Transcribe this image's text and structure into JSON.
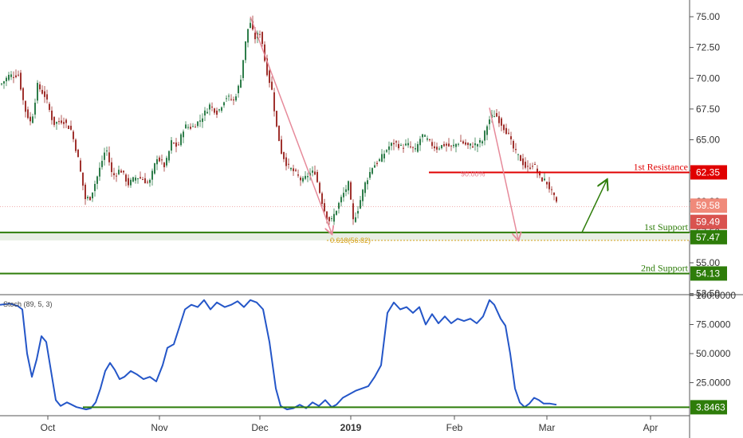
{
  "chart_data": [
    {
      "type": "candlestick",
      "y_ticks": [
        52.5,
        55,
        57.5,
        60,
        62.5,
        65,
        67.5,
        70,
        72.5,
        75
      ],
      "y_tick_labels": [
        "52.50",
        "55.00",
        "57.50",
        "60.00",
        "62.50",
        "65.00",
        "67.50",
        "70.00",
        "72.50",
        "75.00"
      ],
      "ylim": [
        52.2,
        76.5
      ],
      "x_months": [
        "Oct",
        "Nov",
        "Dec",
        "2019",
        "Feb",
        "Mar",
        "Apr"
      ],
      "close_path": [
        [
          0,
          69.5
        ],
        [
          10,
          70.2
        ],
        [
          22,
          70.3
        ],
        [
          30,
          67.5
        ],
        [
          38,
          66.3
        ],
        [
          46,
          69.4
        ],
        [
          56,
          68.5
        ],
        [
          66,
          66.3
        ],
        [
          78,
          66.6
        ],
        [
          88,
          65.8
        ],
        [
          96,
          63.8
        ],
        [
          106,
          60.2
        ],
        [
          112,
          60.3
        ],
        [
          122,
          62.2
        ],
        [
          132,
          64.4
        ],
        [
          140,
          62.0
        ],
        [
          150,
          62.6
        ],
        [
          160,
          61.4
        ],
        [
          170,
          62.0
        ],
        [
          178,
          61.8
        ],
        [
          186,
          61.4
        ],
        [
          196,
          63.6
        ],
        [
          206,
          62.8
        ],
        [
          214,
          64.8
        ],
        [
          222,
          64.4
        ],
        [
          230,
          66.1
        ],
        [
          240,
          66.0
        ],
        [
          250,
          66.6
        ],
        [
          262,
          67.8
        ],
        [
          272,
          67.2
        ],
        [
          282,
          68.5
        ],
        [
          292,
          68.2
        ],
        [
          300,
          69.6
        ],
        [
          306,
          72.5
        ],
        [
          312,
          74.8
        ],
        [
          318,
          73.2
        ],
        [
          326,
          73.8
        ],
        [
          332,
          71.0
        ],
        [
          340,
          69.0
        ],
        [
          346,
          66.0
        ],
        [
          352,
          64.0
        ],
        [
          360,
          62.8
        ],
        [
          368,
          62.4
        ],
        [
          378,
          61.6
        ],
        [
          386,
          62.2
        ],
        [
          394,
          62.4
        ],
        [
          402,
          60.2
        ],
        [
          408,
          58.8
        ],
        [
          414,
          58.3
        ],
        [
          420,
          59.2
        ],
        [
          428,
          60.4
        ],
        [
          436,
          61.4
        ],
        [
          442,
          58.4
        ],
        [
          448,
          59.4
        ],
        [
          456,
          61.3
        ],
        [
          466,
          62.8
        ],
        [
          476,
          63.4
        ],
        [
          486,
          64.4
        ],
        [
          494,
          64.8
        ],
        [
          502,
          64.4
        ],
        [
          510,
          64.6
        ],
        [
          520,
          64.1
        ],
        [
          528,
          65.4
        ],
        [
          536,
          64.9
        ],
        [
          546,
          64.3
        ],
        [
          556,
          64.6
        ],
        [
          566,
          64.4
        ],
        [
          576,
          64.9
        ],
        [
          586,
          64.5
        ],
        [
          596,
          64.6
        ],
        [
          604,
          64.9
        ],
        [
          612,
          66.6
        ],
        [
          620,
          67.1
        ],
        [
          628,
          66.3
        ],
        [
          636,
          65.5
        ],
        [
          644,
          64.1
        ],
        [
          652,
          63.4
        ],
        [
          660,
          62.6
        ],
        [
          668,
          63.1
        ],
        [
          676,
          61.9
        ],
        [
          684,
          61.6
        ],
        [
          692,
          60.6
        ],
        [
          698,
          59.6
        ]
      ],
      "levels": [
        {
          "name": "1st Resistance",
          "value": 62.35,
          "label": "62.35",
          "color": "#e00000"
        },
        {
          "name": "1st Support",
          "value": 57.47,
          "label": "57.47",
          "color": "#2e7d0a"
        },
        {
          "name": "2nd Support",
          "value": 54.13,
          "label": "54.13",
          "color": "#2e7d0a"
        }
      ],
      "price_tags": [
        {
          "value": 59.58,
          "label": "59.58",
          "color": "#f08a7a"
        },
        {
          "value": 59.49,
          "label": "59.49",
          "color": "#d9534f"
        }
      ],
      "fib_label": "0.618(56.82)",
      "fib_value": 56.82,
      "fib_color": "#d4a017",
      "ratio_label": "90.00%",
      "projection_arrows": [
        {
          "from_x": 314,
          "from_y": 75.0,
          "to_x": 416,
          "to_y": 57.4
        },
        {
          "from_x": 614,
          "from_y": 67.6,
          "to_x": 650,
          "to_y": 56.9
        }
      ],
      "bounce_arrow": {
        "from_x": 730,
        "to_x": 761,
        "from_y": 57.47,
        "to_y": 62.35,
        "color": "#2e7d0a"
      },
      "colors": {
        "up": "#2e7d4a",
        "down": "#a0322e",
        "fill_band": "#e8eee4"
      }
    },
    {
      "type": "line",
      "indicator_label": "Stoch (89, 5, 3)",
      "y_ticks": [
        25,
        50,
        75,
        100
      ],
      "y_tick_labels": [
        "25.0000",
        "50.0000",
        "75.0000",
        "100.0000"
      ],
      "ylim": [
        0,
        100
      ],
      "current": {
        "value": 3.8463,
        "label": "3.8463",
        "color": "#2e7d0a"
      },
      "line_color": "#2456c8",
      "points": [
        [
          0,
          92
        ],
        [
          12,
          93
        ],
        [
          22,
          91
        ],
        [
          28,
          88
        ],
        [
          34,
          50
        ],
        [
          40,
          30
        ],
        [
          46,
          45
        ],
        [
          52,
          65
        ],
        [
          58,
          60
        ],
        [
          64,
          35
        ],
        [
          70,
          10
        ],
        [
          76,
          5
        ],
        [
          84,
          8
        ],
        [
          90,
          6
        ],
        [
          96,
          4
        ],
        [
          102,
          3
        ],
        [
          108,
          2
        ],
        [
          114,
          3
        ],
        [
          120,
          8
        ],
        [
          126,
          20
        ],
        [
          132,
          35
        ],
        [
          138,
          42
        ],
        [
          144,
          36
        ],
        [
          150,
          28
        ],
        [
          156,
          30
        ],
        [
          164,
          35
        ],
        [
          172,
          32
        ],
        [
          180,
          28
        ],
        [
          188,
          30
        ],
        [
          196,
          26
        ],
        [
          204,
          40
        ],
        [
          210,
          55
        ],
        [
          218,
          58
        ],
        [
          226,
          75
        ],
        [
          232,
          88
        ],
        [
          240,
          92
        ],
        [
          248,
          90
        ],
        [
          256,
          96
        ],
        [
          264,
          88
        ],
        [
          272,
          94
        ],
        [
          282,
          90
        ],
        [
          290,
          92
        ],
        [
          298,
          95
        ],
        [
          306,
          90
        ],
        [
          314,
          96
        ],
        [
          322,
          94
        ],
        [
          330,
          88
        ],
        [
          338,
          60
        ],
        [
          346,
          20
        ],
        [
          352,
          5
        ],
        [
          360,
          2
        ],
        [
          368,
          3
        ],
        [
          376,
          6
        ],
        [
          384,
          3
        ],
        [
          392,
          8
        ],
        [
          400,
          5
        ],
        [
          408,
          10
        ],
        [
          416,
          4
        ],
        [
          422,
          6
        ],
        [
          430,
          12
        ],
        [
          438,
          15
        ],
        [
          446,
          18
        ],
        [
          454,
          20
        ],
        [
          462,
          22
        ],
        [
          470,
          30
        ],
        [
          478,
          40
        ],
        [
          486,
          85
        ],
        [
          494,
          94
        ],
        [
          502,
          88
        ],
        [
          510,
          90
        ],
        [
          518,
          85
        ],
        [
          526,
          90
        ],
        [
          534,
          75
        ],
        [
          542,
          84
        ],
        [
          550,
          76
        ],
        [
          558,
          82
        ],
        [
          566,
          76
        ],
        [
          574,
          80
        ],
        [
          582,
          78
        ],
        [
          590,
          80
        ],
        [
          598,
          76
        ],
        [
          606,
          82
        ],
        [
          614,
          96
        ],
        [
          620,
          92
        ],
        [
          628,
          80
        ],
        [
          634,
          74
        ],
        [
          640,
          50
        ],
        [
          646,
          20
        ],
        [
          652,
          8
        ],
        [
          658,
          4
        ],
        [
          664,
          7
        ],
        [
          670,
          12
        ],
        [
          676,
          10
        ],
        [
          682,
          7
        ],
        [
          690,
          7
        ],
        [
          698,
          6
        ]
      ]
    }
  ],
  "labels": {
    "resistance_1": "1st Resistance",
    "support_1": "1st Support",
    "support_2": "2nd Support",
    "price_partial": "60.00"
  }
}
